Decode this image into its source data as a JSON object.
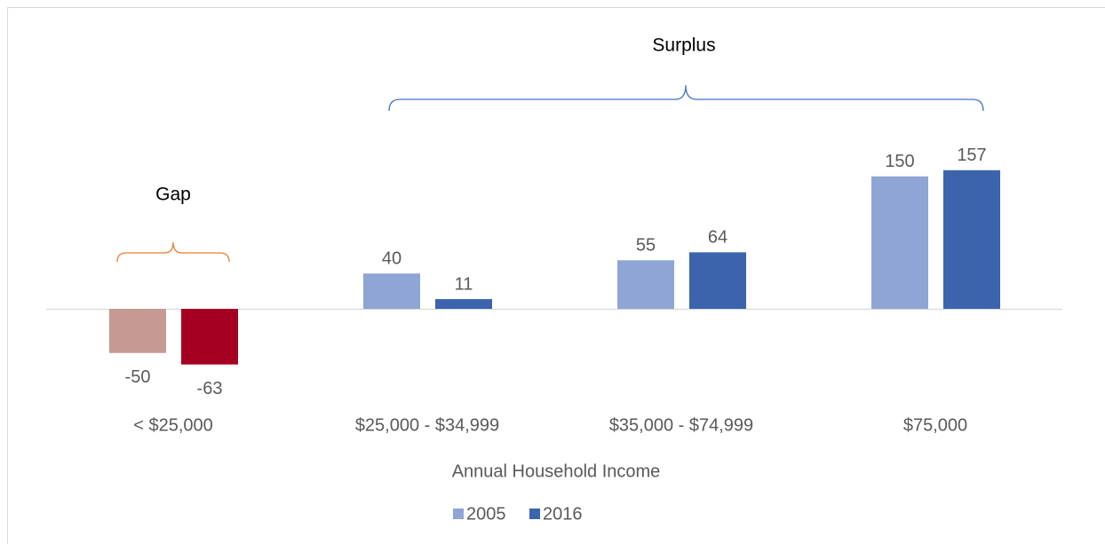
{
  "chart_data": {
    "type": "bar",
    "categories": [
      "< $25,000",
      "$25,000 - $34,999",
      "$35,000 - $74,999",
      "$75,000"
    ],
    "x_label": "Annual Household Income",
    "series": [
      {
        "name": "2005",
        "color": "#8fa5d4",
        "colors": [
          "#c49a93",
          "#8fa5d4",
          "#8fa5d4",
          "#8fa5d4"
        ],
        "values": [
          -50,
          40,
          55,
          150
        ]
      },
      {
        "name": "2016",
        "color": "#3b64ad",
        "colors": [
          "#a50021",
          "#3b64ad",
          "#3b64ad",
          "#3b64ad"
        ],
        "values": [
          -63,
          11,
          64,
          157
        ]
      }
    ],
    "annotations": [
      "Gap",
      "Surplus"
    ]
  }
}
